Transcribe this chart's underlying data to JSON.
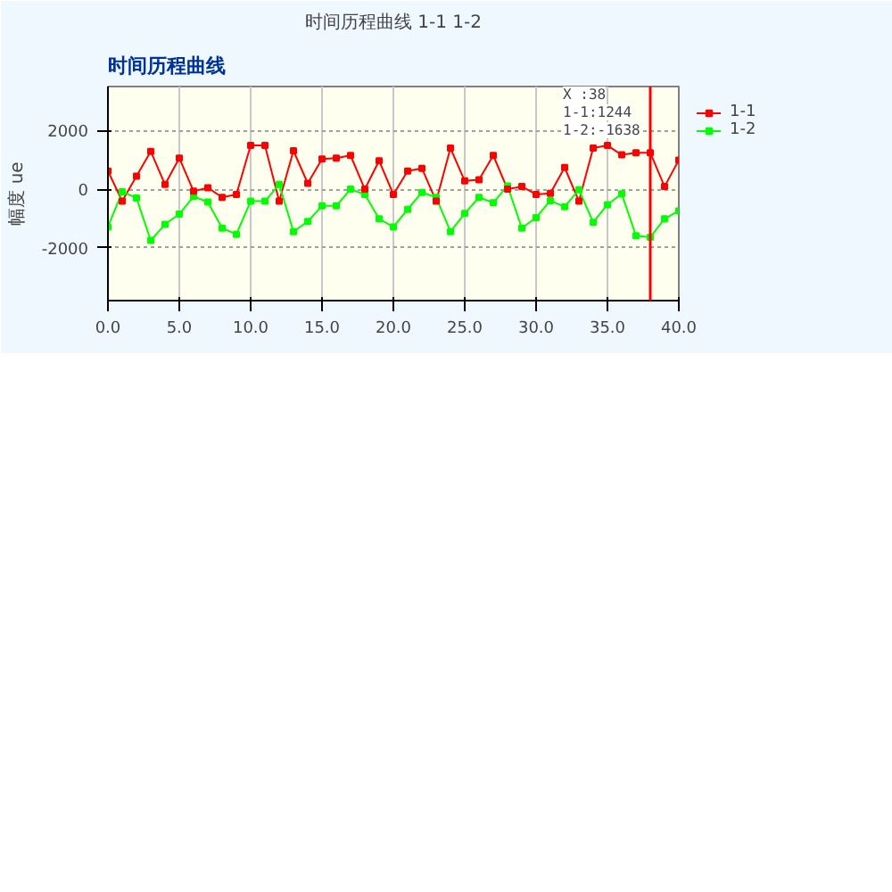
{
  "chart_data": {
    "type": "line",
    "title": "时间历程曲线 1-1 1-2",
    "ylabel": "幅度 ue",
    "x": [
      0,
      1,
      2,
      3,
      4,
      5,
      6,
      7,
      8,
      9,
      10,
      11,
      12,
      13,
      14,
      15,
      16,
      17,
      18,
      19,
      20,
      21,
      22,
      23,
      24,
      25,
      26,
      27,
      28,
      29,
      30,
      31,
      32,
      33,
      34,
      35,
      36,
      37,
      38,
      39,
      40
    ],
    "series": [
      {
        "name": "1-1",
        "color": "#ff0000",
        "values": [
          620,
          -410,
          440,
          1290,
          160,
          1060,
          -70,
          50,
          -280,
          -180,
          1490,
          1490,
          -410,
          1310,
          200,
          1030,
          1060,
          1150,
          0,
          970,
          -180,
          620,
          710,
          -410,
          1400,
          280,
          320,
          1150,
          0,
          90,
          -180,
          -140,
          740,
          -410,
          1400,
          1490,
          1170,
          1240,
          1244,
          90,
          990
        ]
      },
      {
        "name": "1-2",
        "color": "#00ff00",
        "values": [
          -1290,
          -90,
          -300,
          -1750,
          -1200,
          -850,
          -250,
          -440,
          -1330,
          -1540,
          -410,
          -410,
          160,
          -1450,
          -1100,
          -570,
          -570,
          0,
          -180,
          -1010,
          -1290,
          -690,
          -110,
          -280,
          -1450,
          -830,
          -280,
          -460,
          110,
          -1330,
          -970,
          -390,
          -600,
          -20,
          -1130,
          -530,
          -160,
          -1590,
          -1638,
          -1010,
          -740
        ]
      }
    ],
    "xlim": [
      0,
      40
    ],
    "xticks": [
      {
        "value": 0,
        "label": "0.0"
      },
      {
        "value": 5,
        "label": "5.0"
      },
      {
        "value": 10,
        "label": "10.0"
      },
      {
        "value": 15,
        "label": "15.0"
      },
      {
        "value": 20,
        "label": "20.0"
      },
      {
        "value": 25,
        "label": "25.0"
      },
      {
        "value": 30,
        "label": "30.0"
      },
      {
        "value": 35,
        "label": "35.0"
      },
      {
        "value": 40,
        "label": "40.0"
      }
    ],
    "ylim": [
      -3800,
      3500
    ],
    "yticks": [
      -2000,
      0,
      2000
    ],
    "ref_lines": [
      {
        "axis": "x",
        "value": 38,
        "color": "#ff0000"
      }
    ],
    "annotations": [
      "时间历程曲线",
      "X :38",
      "1-1:1244",
      "1-2:-1638"
    ],
    "grid": true,
    "legend": "top right",
    "marker": "square",
    "line_style": "solid"
  }
}
